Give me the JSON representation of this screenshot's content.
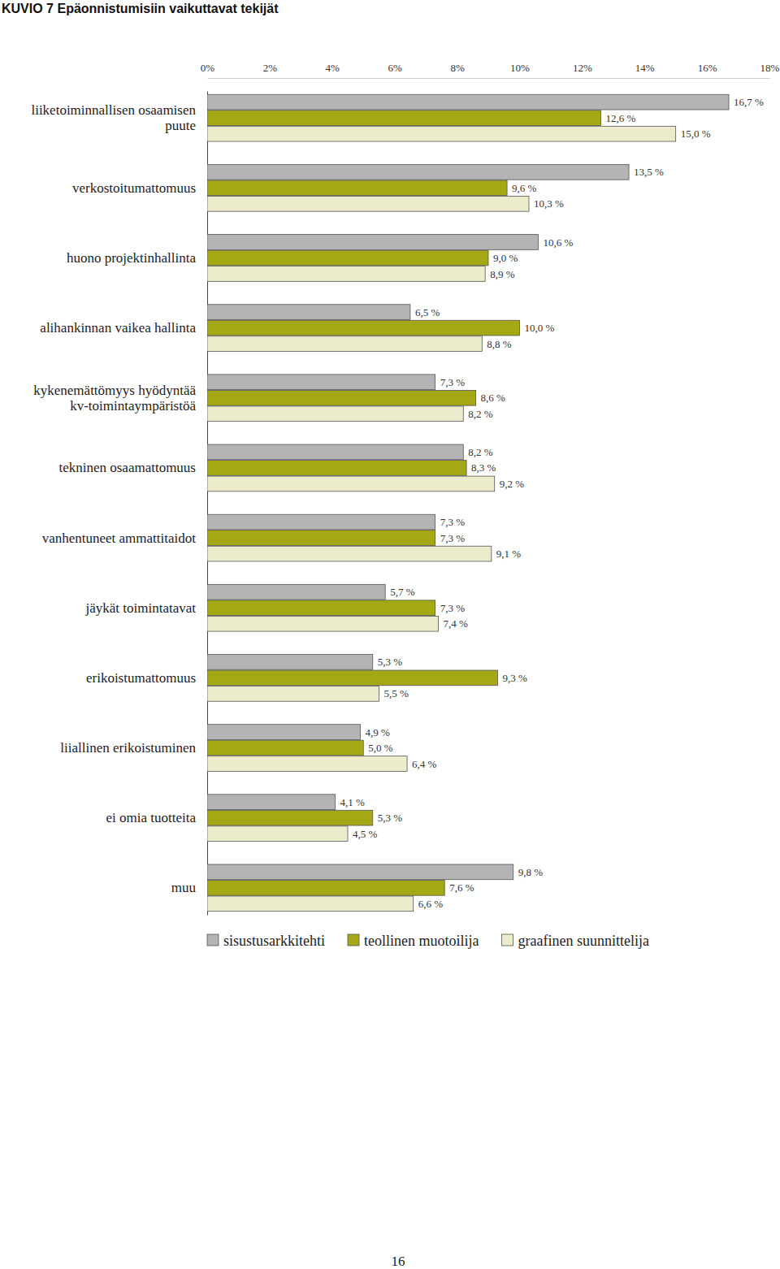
{
  "chart_data": {
    "type": "bar",
    "title": "KUVIO 7  Epäonnistumisiin vaikuttavat tekijät",
    "orientation": "horizontal",
    "data_labels": true,
    "legend": "bottom",
    "categories": [
      "liiketoiminnallisen osaamisen puute",
      "verkostoitumattomuus",
      "huono projektinhallinta",
      "alihankinnan vaikea hallinta",
      "kykenemättömyys hyödyntää kv-toimintaympäristöä",
      "tekninen osaamattomuus",
      "vanhentuneet ammattitaidot",
      "jäykät toimintatavat",
      "erikoistumattomuus",
      "liiallinen erikoistuminen",
      "ei omia tuotteita",
      "muu"
    ],
    "series": [
      {
        "name": "sisustusarkkitehti",
        "color": "#b4b4b4",
        "values": [
          16.7,
          13.5,
          10.6,
          6.5,
          7.3,
          8.2,
          7.3,
          5.7,
          5.3,
          4.9,
          4.1,
          9.8
        ],
        "value_labels": [
          "16,7 %",
          "13,5 %",
          "10,6 %",
          "6,5 %",
          "7,3 %",
          "8,2 %",
          "7,3 %",
          "5,7 %",
          "5,3 %",
          "4,9 %",
          "4,1 %",
          "9,8 %"
        ]
      },
      {
        "name": "teollinen muotoilija",
        "color": "#a3a814",
        "values": [
          12.6,
          9.6,
          9.0,
          10.0,
          8.6,
          8.3,
          7.3,
          7.3,
          9.3,
          5.0,
          5.3,
          7.6
        ],
        "value_labels": [
          "12,6 %",
          "9,6 %",
          "9,0 %",
          "10,0 %",
          "8,6 %",
          "8,3 %",
          "7,3 %",
          "7,3 %",
          "9,3 %",
          "5,0 %",
          "5,3 %",
          "7,6 %"
        ]
      },
      {
        "name": "graafinen suunnittelija",
        "color": "#ecebcc",
        "values": [
          15.0,
          10.3,
          8.9,
          8.8,
          8.2,
          9.2,
          9.1,
          7.4,
          5.5,
          6.4,
          4.5,
          6.6
        ],
        "value_labels": [
          "15,0 %",
          "10,3 %",
          "8,9 %",
          "8,8 %",
          "8,2 %",
          "9,2 %",
          "9,1 %",
          "7,4 %",
          "5,5 %",
          "6,4 %",
          "4,5 %",
          "6,6 %"
        ]
      }
    ],
    "xlim": [
      0,
      18
    ],
    "xticks": [
      {
        "value": 0,
        "label": "0%"
      },
      {
        "value": 2,
        "label": "2%"
      },
      {
        "value": 4,
        "label": "4%"
      },
      {
        "value": 6,
        "label": "6%"
      },
      {
        "value": 8,
        "label": "8%"
      },
      {
        "value": 10,
        "label": "10%"
      },
      {
        "value": 12,
        "label": "12%"
      },
      {
        "value": 14,
        "label": "14%"
      },
      {
        "value": 16,
        "label": "16%"
      },
      {
        "value": 18,
        "label": "18%"
      }
    ]
  },
  "page": {
    "number": "16"
  }
}
